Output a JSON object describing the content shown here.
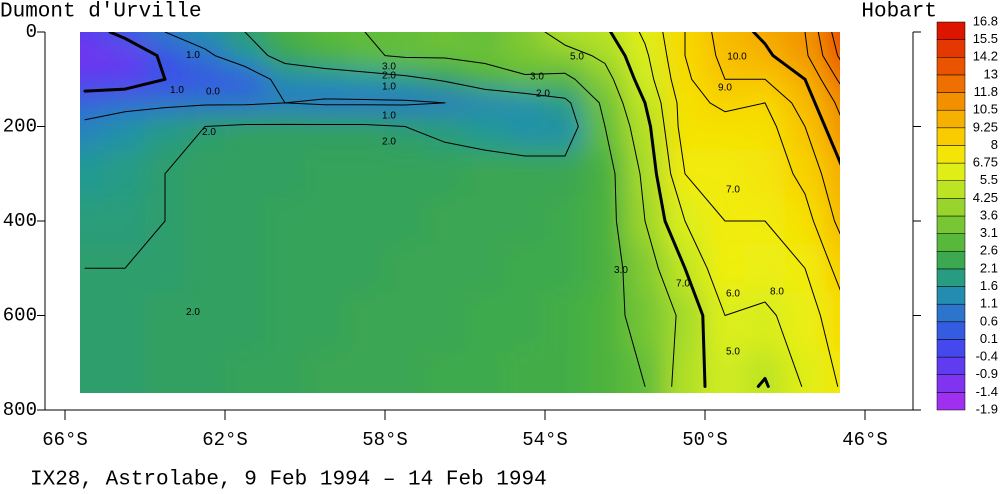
{
  "chart_data": {
    "type": "heatmap",
    "left_label": "Dumont d'Urville",
    "right_label": "Hobart",
    "caption": "IX28, Astrolabe, 9 Feb 1994 – 14 Feb 1994",
    "xlim": [
      -66.5,
      -44.8
    ],
    "xticks": [
      {
        "value": -66,
        "label": "66°S"
      },
      {
        "value": -62,
        "label": "62°S"
      },
      {
        "value": -58,
        "label": "58°S"
      },
      {
        "value": -54,
        "label": "54°S"
      },
      {
        "value": -50,
        "label": "50°S"
      },
      {
        "value": -46,
        "label": "46°S"
      }
    ],
    "ylim": [
      800,
      0
    ],
    "yticks": [
      0,
      200,
      400,
      600,
      800
    ],
    "x": [
      -65.5,
      -64.5,
      -63.5,
      -62.5,
      -61.5,
      -60.5,
      -59.5,
      -58.5,
      -57.5,
      -56.5,
      -55.5,
      -54.5,
      -53.5,
      -52.5,
      -51.5,
      -50.5,
      -49.5,
      -48.5,
      -47.5,
      -46.5
    ],
    "y": [
      0,
      50,
      100,
      150,
      200,
      300,
      400,
      500,
      600,
      750
    ],
    "z": [
      [
        -0.5,
        0.3,
        1.0,
        1.5,
        2.0,
        2.6,
        2.9,
        3.0,
        3.0,
        3.2,
        3.0,
        3.5,
        4.5,
        4.8,
        6.2,
        8.0,
        9.5,
        10.2,
        11.0,
        14.0
      ],
      [
        -1.0,
        -0.8,
        0.2,
        0.8,
        1.6,
        2.3,
        2.6,
        2.9,
        3.1,
        3.1,
        3.2,
        3.4,
        3.6,
        4.2,
        5.8,
        8.0,
        9.3,
        9.8,
        10.8,
        13.5
      ],
      [
        -0.5,
        -0.5,
        0.0,
        0.2,
        0.3,
        1.4,
        1.5,
        1.6,
        1.8,
        2.1,
        2.6,
        2.9,
        2.8,
        3.6,
        5.5,
        7.8,
        9.0,
        9.0,
        10.0,
        12.5
      ],
      [
        0.5,
        0.7,
        0.8,
        0.9,
        0.9,
        1.0,
        0.9,
        0.9,
        0.9,
        1.0,
        1.2,
        1.4,
        1.8,
        3.2,
        5.0,
        7.5,
        8.3,
        8.0,
        9.5,
        11.5
      ],
      [
        1.2,
        1.5,
        1.8,
        2.0,
        2.1,
        2.1,
        2.1,
        2.1,
        2.0,
        1.9,
        1.7,
        1.5,
        1.5,
        3.0,
        4.6,
        7.5,
        7.5,
        7.6,
        9.0,
        11.0
      ],
      [
        1.7,
        1.8,
        2.0,
        2.1,
        2.1,
        2.1,
        2.2,
        2.2,
        2.2,
        2.2,
        2.3,
        2.3,
        2.3,
        2.6,
        4.2,
        7.0,
        7.0,
        7.3,
        8.3,
        10.0
      ],
      [
        1.9,
        1.9,
        2.0,
        2.1,
        2.1,
        2.2,
        2.2,
        2.2,
        2.2,
        2.3,
        2.3,
        2.3,
        2.4,
        2.6,
        4.0,
        6.0,
        7.0,
        7.0,
        7.6,
        9.5
      ],
      [
        2.0,
        2.0,
        2.0,
        2.1,
        2.1,
        2.2,
        2.2,
        2.2,
        2.3,
        2.3,
        2.3,
        2.4,
        2.4,
        2.6,
        3.5,
        5.0,
        6.8,
        6.5,
        7.0,
        8.5
      ],
      [
        2.0,
        2.0,
        2.1,
        2.1,
        2.1,
        2.2,
        2.2,
        2.3,
        2.3,
        2.3,
        2.4,
        2.4,
        2.5,
        2.7,
        3.3,
        4.2,
        6.0,
        5.8,
        6.5,
        7.8
      ],
      [
        2.0,
        2.0,
        2.1,
        2.1,
        2.2,
        2.2,
        2.3,
        2.3,
        2.3,
        2.4,
        2.4,
        2.5,
        2.5,
        2.7,
        3.0,
        4.5,
        5.5,
        4.9,
        6.1,
        7.2
      ]
    ],
    "contour_levels": [
      0,
      1,
      2,
      3,
      4,
      5,
      6,
      7,
      8,
      9,
      10,
      11,
      12,
      13
    ],
    "contour_labels": [
      {
        "value": 1,
        "label": "1.0",
        "x": -62.8,
        "y": 49
      },
      {
        "value": 0,
        "label": "0.0",
        "x": -62.3,
        "y": 127
      },
      {
        "value": 1,
        "label": "1.0",
        "x": -63.2,
        "y": 123
      },
      {
        "value": 3,
        "label": "3.0",
        "x": -57.9,
        "y": 74
      },
      {
        "value": 2,
        "label": "2.0",
        "x": -57.9,
        "y": 93
      },
      {
        "value": 1,
        "label": "1.0",
        "x": -57.9,
        "y": 116
      },
      {
        "value": 1,
        "label": "1.0",
        "x": -57.9,
        "y": 178
      },
      {
        "value": 2,
        "label": "2.0",
        "x": -62.4,
        "y": 212
      },
      {
        "value": 2,
        "label": "2.0",
        "x": -57.9,
        "y": 233
      },
      {
        "value": 3,
        "label": "3.0",
        "x": -54.2,
        "y": 95
      },
      {
        "value": 2,
        "label": "2.0",
        "x": -54.05,
        "y": 131
      },
      {
        "value": 5,
        "label": "5.0",
        "x": -53.2,
        "y": 53
      },
      {
        "value": 10,
        "label": "10.0",
        "x": -49.2,
        "y": 53
      },
      {
        "value": 9,
        "label": "9.0",
        "x": -49.5,
        "y": 118
      },
      {
        "value": 7,
        "label": "7.0",
        "x": -49.3,
        "y": 334
      },
      {
        "value": 6,
        "label": "6.0",
        "x": -49.3,
        "y": 554
      },
      {
        "value": 8,
        "label": "8.0",
        "x": -48.2,
        "y": 550
      },
      {
        "value": 7,
        "label": "7.0",
        "x": -50.55,
        "y": 533
      },
      {
        "value": 3,
        "label": "3.0",
        "x": -52.1,
        "y": 504
      },
      {
        "value": 5,
        "label": "5.0",
        "x": -49.3,
        "y": 677
      },
      {
        "value": 2,
        "label": "2.0",
        "x": -62.8,
        "y": 593
      }
    ],
    "colorbar_ticks": [
      -1.9,
      -1.4,
      -0.9,
      -0.4,
      0.1,
      0.6,
      1.1,
      1.6,
      2.1,
      2.6,
      3.1,
      3.6,
      4.25,
      5.5,
      6.75,
      8,
      9.25,
      10.5,
      11.8,
      13,
      14.2,
      15.5,
      16.8
    ],
    "colormap": [
      "#b030f0",
      "#9030f0",
      "#7038f0",
      "#5040f0",
      "#3a50e8",
      "#3068d8",
      "#2880c0",
      "#2098a0",
      "#30a060",
      "#48b040",
      "#68c038",
      "#88cc30",
      "#a8dc28",
      "#d0ec20",
      "#f0f010",
      "#f8d800",
      "#f8c000",
      "#f4a000",
      "#f08000",
      "#ec6000",
      "#e84800",
      "#e02800",
      "#d80000"
    ]
  }
}
